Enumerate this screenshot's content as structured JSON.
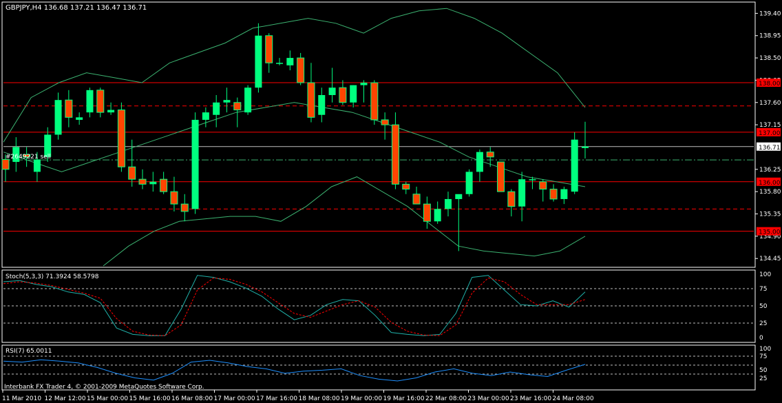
{
  "window": {
    "symbol_header": "GBPJPY,H4  136.68 137.21 136.47 136.71",
    "order_label": "#2649221 sell",
    "current_price": "136.71",
    "copyright": "Interbank FX Trader 4, © 2001-2009 MetaQuotes Software Corp."
  },
  "colors": {
    "background": "#000000",
    "frame": "#ffffff",
    "bull_candle": "#00ff7f",
    "bear_candle": "#ff4500",
    "bands": "#3cb371",
    "level_lines": "#ff0000",
    "stoch_main": "#20b2aa",
    "stoch_signal": "#ff0000",
    "rsi": "#1e90ff"
  },
  "chart_data": {
    "type": "candlestick",
    "symbol": "GBPJPY",
    "timeframe": "H4",
    "last_ohlc": {
      "open": 136.68,
      "high": 137.21,
      "low": 136.47,
      "close": 136.71
    },
    "ylim": [
      134.3,
      139.6
    ],
    "price_ticks": [
      "139.40",
      "138.95",
      "138.50",
      "138.05",
      "137.60",
      "137.15",
      "136.71",
      "136.25",
      "135.80",
      "135.35",
      "134.90",
      "134.45"
    ],
    "level_labels": [
      "138.00",
      "137.00",
      "136.00",
      "135.00"
    ],
    "solid_levels": [
      138.0,
      137.0,
      136.0,
      135.0
    ],
    "dashed_levels": [
      137.53,
      135.45
    ],
    "dashdot_level": 136.44,
    "x_labels": [
      "11 Mar 2010",
      "12 Mar 12:00",
      "15 Mar 00:00",
      "15 Mar 16:00",
      "16 Mar 08:00",
      "17 Mar 00:00",
      "17 Mar 16:00",
      "18 Mar 08:00",
      "19 Mar 00:00",
      "19 Mar 16:00",
      "22 Mar 08:00",
      "23 Mar 00:00",
      "23 Mar 16:00",
      "24 Mar 08:00"
    ],
    "candles": [
      [
        136.45,
        136.55,
        136.0,
        136.25
      ],
      [
        136.4,
        136.9,
        136.2,
        136.7
      ],
      [
        136.55,
        136.7,
        136.3,
        136.5
      ],
      [
        136.2,
        136.6,
        136.0,
        136.45
      ],
      [
        136.5,
        137.1,
        136.4,
        136.95
      ],
      [
        136.95,
        137.8,
        136.85,
        137.65
      ],
      [
        137.65,
        137.85,
        137.1,
        137.3
      ],
      [
        137.25,
        137.4,
        137.15,
        137.3
      ],
      [
        137.4,
        137.9,
        137.3,
        137.85
      ],
      [
        137.85,
        137.9,
        137.3,
        137.4
      ],
      [
        137.4,
        137.6,
        137.35,
        137.45
      ],
      [
        137.45,
        137.6,
        136.2,
        136.3
      ],
      [
        136.3,
        136.85,
        135.9,
        136.05
      ],
      [
        136.05,
        136.25,
        135.85,
        135.95
      ],
      [
        135.95,
        136.2,
        135.8,
        136.0
      ],
      [
        136.05,
        136.2,
        135.75,
        135.8
      ],
      [
        135.8,
        136.1,
        135.4,
        135.55
      ],
      [
        135.55,
        135.75,
        135.2,
        135.4
      ],
      [
        135.45,
        137.4,
        135.35,
        137.25
      ],
      [
        137.25,
        137.5,
        137.1,
        137.4
      ],
      [
        137.35,
        137.75,
        137.1,
        137.6
      ],
      [
        137.6,
        137.9,
        137.4,
        137.65
      ],
      [
        137.6,
        137.7,
        137.1,
        137.45
      ],
      [
        137.4,
        137.95,
        137.35,
        137.9
      ],
      [
        137.9,
        139.2,
        137.8,
        138.95
      ],
      [
        138.95,
        139.0,
        138.2,
        138.4
      ],
      [
        138.4,
        138.5,
        138.35,
        138.4
      ],
      [
        138.35,
        138.65,
        138.25,
        138.5
      ],
      [
        138.5,
        138.6,
        137.95,
        138.0
      ],
      [
        138.0,
        138.4,
        137.2,
        137.3
      ],
      [
        137.35,
        137.9,
        137.2,
        137.75
      ],
      [
        137.75,
        138.3,
        137.6,
        137.9
      ],
      [
        137.9,
        138.05,
        137.55,
        137.6
      ],
      [
        137.6,
        137.95,
        137.5,
        137.95
      ],
      [
        137.95,
        138.05,
        137.6,
        138.0
      ],
      [
        138.0,
        138.05,
        137.15,
        137.25
      ],
      [
        137.25,
        137.4,
        136.85,
        137.15
      ],
      [
        137.15,
        137.4,
        135.85,
        135.95
      ],
      [
        135.95,
        136.0,
        135.75,
        135.85
      ],
      [
        135.75,
        135.9,
        135.55,
        135.55
      ],
      [
        135.55,
        135.7,
        135.05,
        135.2
      ],
      [
        135.2,
        135.6,
        135.15,
        135.45
      ],
      [
        135.45,
        135.8,
        135.3,
        135.65
      ],
      [
        135.65,
        135.7,
        134.6,
        135.75
      ],
      [
        135.75,
        136.25,
        135.7,
        136.2
      ],
      [
        136.2,
        136.65,
        136.0,
        136.6
      ],
      [
        136.6,
        136.7,
        136.3,
        136.5
      ],
      [
        136.4,
        136.4,
        135.8,
        135.8
      ],
      [
        135.8,
        135.85,
        135.3,
        135.5
      ],
      [
        135.5,
        136.2,
        135.2,
        136.05
      ],
      [
        136.05,
        136.1,
        135.85,
        136.05
      ],
      [
        136.0,
        136.05,
        135.6,
        135.85
      ],
      [
        135.85,
        135.95,
        135.6,
        135.65
      ],
      [
        135.65,
        135.9,
        135.55,
        135.85
      ],
      [
        135.8,
        137.0,
        135.75,
        136.85
      ],
      [
        136.68,
        137.21,
        136.47,
        136.71
      ]
    ],
    "bands_upper": [
      136.8,
      137.7,
      138.0,
      138.2,
      138.1,
      138.0,
      138.4,
      138.6,
      138.8,
      139.1,
      139.2,
      139.3,
      139.2,
      139.0,
      139.3,
      139.45,
      139.5,
      139.3,
      139.0,
      138.6,
      138.2,
      137.5
    ],
    "bands_middle": [
      136.6,
      136.4,
      136.2,
      136.4,
      136.6,
      136.8,
      137.0,
      137.2,
      137.4,
      137.5,
      137.6,
      137.5,
      137.4,
      137.2,
      137.0,
      136.8,
      136.5,
      136.3,
      136.1,
      136.0,
      135.9
    ],
    "bands_lower": [
      134.3,
      134.7,
      135.0,
      135.2,
      135.25,
      135.3,
      135.3,
      135.2,
      135.5,
      135.9,
      136.1,
      135.8,
      135.5,
      135.1,
      134.7,
      134.6,
      134.55,
      134.5,
      134.6,
      134.9
    ],
    "stochastic": {
      "label": "Stoch(5,3,3) 71.3924 58.5798",
      "main": 71.3924,
      "signal": 58.5798,
      "levels": [
        20,
        80
      ],
      "ticks": [
        "100",
        "75",
        "50",
        "25",
        "0"
      ],
      "main_values": [
        88,
        90,
        84,
        80,
        72,
        68,
        55,
        15,
        5,
        3,
        3,
        45,
        98,
        95,
        88,
        78,
        65,
        45,
        28,
        35,
        52,
        60,
        58,
        35,
        8,
        5,
        3,
        5,
        38,
        95,
        98,
        75,
        52,
        50,
        58,
        48,
        72
      ],
      "signal_values": [
        85,
        88,
        86,
        82,
        76,
        70,
        62,
        30,
        10,
        4,
        3,
        20,
        75,
        94,
        92,
        84,
        72,
        55,
        38,
        32,
        42,
        52,
        58,
        48,
        24,
        10,
        4,
        3,
        20,
        70,
        94,
        88,
        68,
        52,
        52,
        52,
        60
      ]
    },
    "rsi": {
      "label": "RSI(7) 65.0011",
      "value": 65.0011,
      "levels": [
        30,
        70
      ],
      "ticks": [
        "100",
        "75",
        "50",
        "25"
      ],
      "values": [
        72,
        70,
        75,
        72,
        68,
        58,
        45,
        35,
        30,
        45,
        70,
        74,
        68,
        60,
        55,
        45,
        50,
        52,
        55,
        40,
        32,
        28,
        35,
        48,
        55,
        45,
        40,
        48,
        42,
        38,
        52,
        65
      ]
    }
  }
}
